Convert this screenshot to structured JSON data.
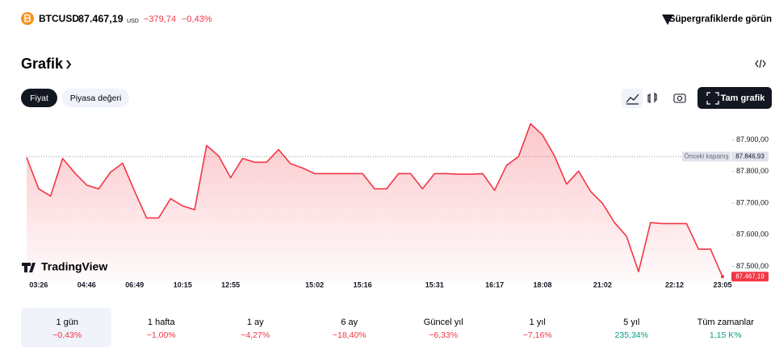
{
  "header": {
    "symbol": "BTCUSD",
    "price": "87.467,19",
    "currency": "USD",
    "change": "−379,74",
    "change_percent": "−0,43%",
    "change_color": "#f23645",
    "cta": "Süpergrafiklerde görün"
  },
  "section_title": "Grafik",
  "tabs": [
    "Fiyat",
    "Piyasa değeri"
  ],
  "full_chart_button": "Tam grafik",
  "watermark": "TradingView",
  "chart_data": {
    "type": "area",
    "color": "#f23645",
    "categories": [
      null,
      "03:26",
      null,
      null,
      null,
      "04:46",
      null,
      null,
      null,
      "06:49",
      null,
      null,
      null,
      "10:15",
      null,
      null,
      null,
      "12:55",
      null,
      null,
      null,
      null,
      null,
      null,
      "15:02",
      null,
      null,
      null,
      "15:16",
      null,
      null,
      null,
      null,
      null,
      "15:31",
      null,
      null,
      null,
      null,
      "16:17",
      null,
      null,
      null,
      "18:08",
      null,
      null,
      null,
      null,
      "21:02",
      null,
      null,
      null,
      null,
      null,
      "22:12",
      null,
      null,
      null,
      "23:05"
    ],
    "values": [
      87844,
      87745,
      87722,
      87841,
      87796,
      87757,
      87745,
      87798,
      87826,
      87737,
      87653,
      87653,
      87714,
      87691,
      87679,
      87882,
      87849,
      87780,
      87841,
      87829,
      87829,
      87869,
      87824,
      87811,
      87793,
      87793,
      87793,
      87793,
      87793,
      87745,
      87745,
      87793,
      87793,
      87745,
      87793,
      87793,
      87791,
      87791,
      87793,
      87740,
      87819,
      87847,
      87951,
      87915,
      87849,
      87760,
      87801,
      87737,
      87699,
      87638,
      87595,
      87483,
      87638,
      87635,
      87635,
      87635,
      87554,
      87554,
      87467.19
    ],
    "value_labels": [
      null,
      null,
      null,
      null,
      null,
      null,
      null,
      null,
      null,
      null,
      null,
      null,
      null,
      null,
      null,
      null,
      null,
      null,
      null,
      null,
      null,
      null,
      null,
      null,
      null,
      null,
      null,
      null,
      null,
      null,
      null,
      null,
      null,
      null,
      null,
      null,
      null,
      null,
      null,
      null,
      null,
      null,
      null,
      null,
      null,
      null,
      null,
      null,
      null,
      null,
      null,
      null,
      null,
      null,
      null,
      null,
      null,
      null,
      "87.467,19"
    ],
    "ylim": [
      87450,
      87970
    ],
    "yticks": [
      {
        "value": 87500,
        "label": "87.500,00"
      },
      {
        "value": 87600,
        "label": "87.600,00"
      },
      {
        "value": 87700,
        "label": "87.700,00"
      },
      {
        "value": 87800,
        "label": "87.800,00"
      },
      {
        "value": 87900,
        "label": "87.900,00"
      }
    ],
    "reference_line": {
      "name": "Önceki kapanış",
      "value": 87846.93,
      "label": "87.846,93"
    }
  },
  "periods": [
    {
      "label": "1 gün",
      "change": "−0,43%",
      "color": "#f23645"
    },
    {
      "label": "1 hafta",
      "change": "−1,00%",
      "color": "#f23645"
    },
    {
      "label": "1 ay",
      "change": "−4,27%",
      "color": "#f23645"
    },
    {
      "label": "6 ay",
      "change": "−18,40%",
      "color": "#f23645"
    },
    {
      "label": "Güncel yıl",
      "change": "−6,33%",
      "color": "#f23645"
    },
    {
      "label": "1 yıl",
      "change": "−7,16%",
      "color": "#f23645"
    },
    {
      "label": "5 yıl",
      "change": "235,34%",
      "color": "#089981"
    },
    {
      "label": "Tüm zamanlar",
      "change": "1,15 K%",
      "color": "#089981"
    }
  ]
}
